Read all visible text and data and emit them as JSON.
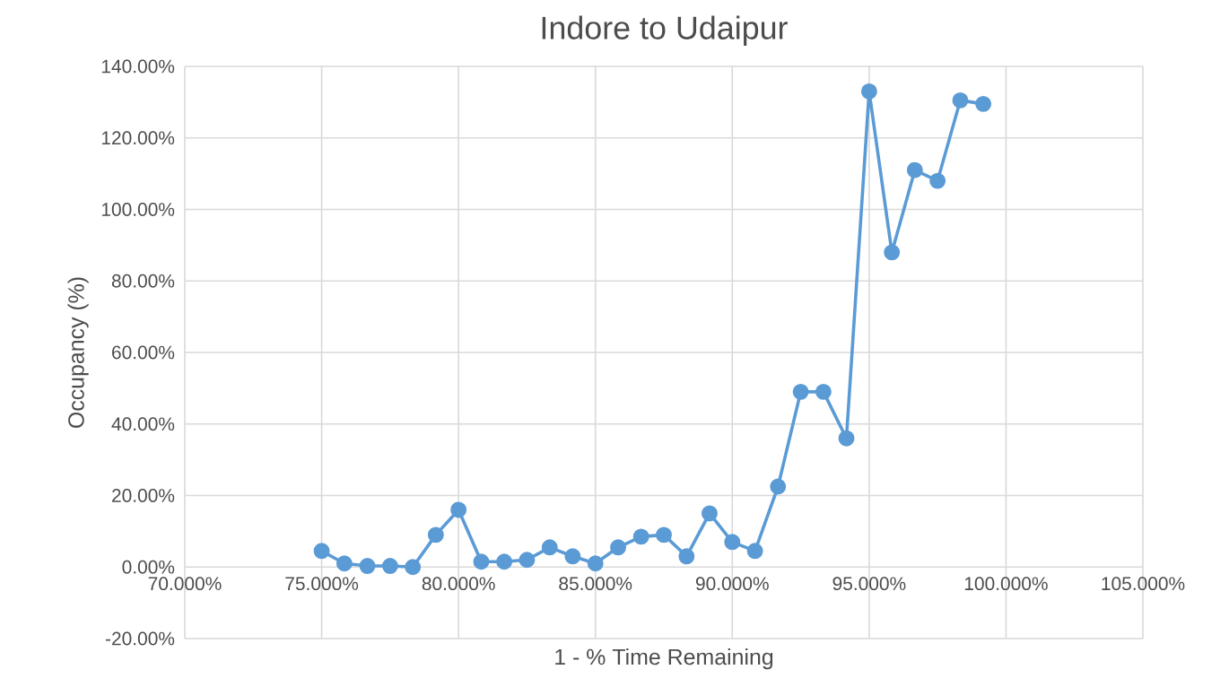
{
  "chart_data": {
    "type": "line",
    "title": "Indore to Udaipur",
    "xlabel": "1 - % Time Remaining",
    "ylabel": "Occupancy (%)",
    "x": [
      75.0,
      75.83,
      76.67,
      77.5,
      78.33,
      79.17,
      80.0,
      80.83,
      81.67,
      82.5,
      83.33,
      84.17,
      85.0,
      85.83,
      86.67,
      87.5,
      88.33,
      89.17,
      90.0,
      90.83,
      91.67,
      92.5,
      93.33,
      94.17,
      95.0,
      95.83,
      96.67,
      97.5,
      98.33,
      99.17
    ],
    "series": [
      {
        "color": "#5b9bd5",
        "values": [
          4.5,
          1,
          0.3,
          0.3,
          0,
          9,
          16,
          1.5,
          1.5,
          2,
          5.5,
          3,
          1,
          5.5,
          8.5,
          9,
          3,
          15,
          7,
          4.5,
          22.5,
          49,
          49,
          36,
          133,
          88,
          111,
          108,
          130.5,
          129.5
        ]
      }
    ],
    "xlim": [
      70,
      105
    ],
    "ylim": [
      -20,
      140
    ],
    "xticks": [
      {
        "value": 70,
        "label": "70.000%"
      },
      {
        "value": 75,
        "label": "75.000%"
      },
      {
        "value": 80,
        "label": "80.000%"
      },
      {
        "value": 85,
        "label": "85.000%"
      },
      {
        "value": 90,
        "label": "90.000%"
      },
      {
        "value": 95,
        "label": "95.000%"
      },
      {
        "value": 100,
        "label": "100.000%"
      },
      {
        "value": 105,
        "label": "105.000%"
      }
    ],
    "yticks": [
      {
        "value": -20,
        "label": "-20.00%"
      },
      {
        "value": 0,
        "label": "0.00%"
      },
      {
        "value": 20,
        "label": "20.00%"
      },
      {
        "value": 40,
        "label": "40.00%"
      },
      {
        "value": 60,
        "label": "60.00%"
      },
      {
        "value": 80,
        "label": "80.00%"
      },
      {
        "value": 100,
        "label": "100.00%"
      },
      {
        "value": 120,
        "label": "120.00%"
      },
      {
        "value": 140,
        "label": "140.00%"
      }
    ],
    "grid": true,
    "marker": "circle",
    "line_style": "solid"
  }
}
